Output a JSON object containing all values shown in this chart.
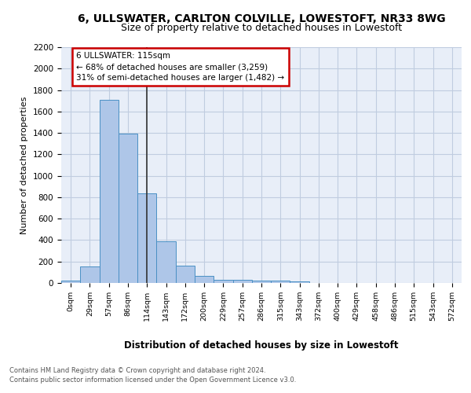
{
  "title1": "6, ULLSWATER, CARLTON COLVILLE, LOWESTOFT, NR33 8WG",
  "title2": "Size of property relative to detached houses in Lowestoft",
  "xlabel": "Distribution of detached houses by size in Lowestoft",
  "ylabel": "Number of detached properties",
  "footnote1": "Contains HM Land Registry data © Crown copyright and database right 2024.",
  "footnote2": "Contains public sector information licensed under the Open Government Licence v3.0.",
  "bar_labels": [
    "0sqm",
    "29sqm",
    "57sqm",
    "86sqm",
    "114sqm",
    "143sqm",
    "172sqm",
    "200sqm",
    "229sqm",
    "257sqm",
    "286sqm",
    "315sqm",
    "343sqm",
    "372sqm",
    "400sqm",
    "429sqm",
    "458sqm",
    "486sqm",
    "515sqm",
    "543sqm",
    "572sqm"
  ],
  "bar_values": [
    20,
    155,
    1710,
    1395,
    835,
    390,
    165,
    68,
    32,
    28,
    25,
    20,
    12,
    0,
    0,
    0,
    0,
    0,
    0,
    0,
    0
  ],
  "bar_color": "#aec6e8",
  "bar_edge_color": "#4a90c4",
  "property_line_x": 4,
  "annotation_line1": "6 ULLSWATER: 115sqm",
  "annotation_line2": "← 68% of detached houses are smaller (3,259)",
  "annotation_line3": "31% of semi-detached houses are larger (1,482) →",
  "annotation_box_color": "#ffffff",
  "annotation_box_edge": "#cc0000",
  "ylim": [
    0,
    2200
  ],
  "yticks": [
    0,
    200,
    400,
    600,
    800,
    1000,
    1200,
    1400,
    1600,
    1800,
    2000,
    2200
  ],
  "bg_color": "#e8eef8",
  "grid_color": "#c0cce0",
  "title1_fontsize": 10,
  "title2_fontsize": 9
}
